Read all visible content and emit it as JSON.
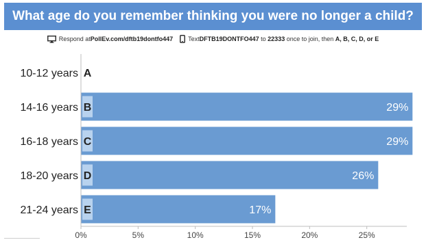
{
  "title": "What age do you remember thinking you were no longer a child?",
  "instructions": {
    "monitor_icon": "monitor-icon",
    "phone_icon": "phone-icon",
    "respond_prefix": "Respond at ",
    "respond_url": "PollEv.com/dftb19dontfo447",
    "text_prefix": "Text ",
    "text_code": "DFTB19DONTFO447",
    "text_to": " to ",
    "text_number": "22333",
    "text_suffix": " once to join, then ",
    "text_options": "A, B, C, D, or E"
  },
  "colors": {
    "accent": "#5b8fd1",
    "bar": "#6a9bd2",
    "letter_bg": "#b8d2ee"
  },
  "chart_data": {
    "type": "bar",
    "orientation": "horizontal",
    "categories": [
      "10-12 years",
      "14-16 years",
      "16-18 years",
      "18-20 years",
      "21-24 years"
    ],
    "letters": [
      "A",
      "B",
      "C",
      "D",
      "E"
    ],
    "values": [
      0,
      29,
      29,
      26,
      17
    ],
    "value_labels": [
      "",
      "29%",
      "29%",
      "26%",
      "17%"
    ],
    "xlim": [
      0,
      28.5
    ],
    "xticks": [
      0,
      5,
      10,
      15,
      20,
      25
    ],
    "xtick_labels": [
      "0%",
      "5%",
      "10%",
      "15%",
      "20%",
      "25%"
    ],
    "grid": false
  }
}
